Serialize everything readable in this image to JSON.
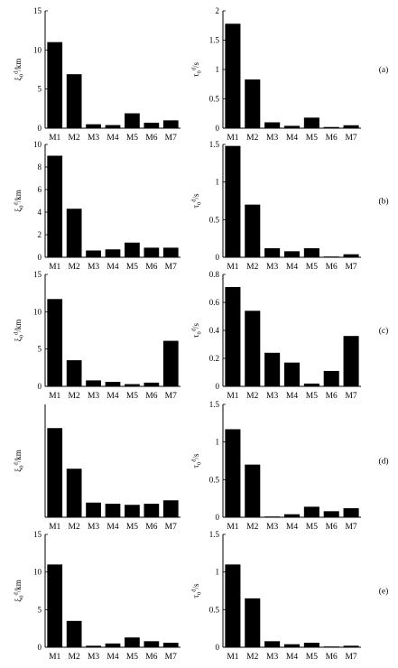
{
  "chart_data": [
    {
      "type": "bar",
      "panel": "",
      "categories": [
        "M1",
        "M2",
        "M3",
        "M4",
        "M5",
        "M6",
        "M7"
      ],
      "values": [
        11.0,
        6.9,
        0.5,
        0.4,
        1.9,
        0.7,
        1.0
      ],
      "ylim": [
        0,
        15
      ],
      "yticks": [
        "0",
        "5",
        "10",
        "15"
      ],
      "ylabel": "ξ0d/km",
      "xlabel": ""
    },
    {
      "type": "bar",
      "panel": "(a)",
      "categories": [
        "M1",
        "M2",
        "M3",
        "M4",
        "M5",
        "M6",
        "M7"
      ],
      "values": [
        1.78,
        0.83,
        0.1,
        0.04,
        0.18,
        0.02,
        0.05
      ],
      "ylim": [
        0,
        2
      ],
      "yticks": [
        "0",
        "0.5",
        "1",
        "1.5",
        "2"
      ],
      "ylabel": "τ0d/s",
      "xlabel": ""
    },
    {
      "type": "bar",
      "panel": "",
      "categories": [
        "M1",
        "M2",
        "M3",
        "M4",
        "M5",
        "M6",
        "M7"
      ],
      "values": [
        9.0,
        4.3,
        0.6,
        0.7,
        1.3,
        0.85,
        0.85
      ],
      "ylim": [
        0,
        10
      ],
      "yticks": [
        "0",
        "2",
        "4",
        "6",
        "8",
        "10"
      ],
      "ylabel": "ξ0d/km",
      "xlabel": ""
    },
    {
      "type": "bar",
      "panel": "(b)",
      "categories": [
        "M1",
        "M2",
        "M3",
        "M4",
        "M5",
        "M6",
        "M7"
      ],
      "values": [
        1.48,
        0.7,
        0.12,
        0.08,
        0.12,
        0.01,
        0.04
      ],
      "ylim": [
        0,
        1.5
      ],
      "yticks": [
        "0",
        "0.5",
        "1",
        "1.5"
      ],
      "ylabel": "τ0d/s",
      "xlabel": ""
    },
    {
      "type": "bar",
      "panel": "",
      "categories": [
        "M1",
        "M2",
        "M3",
        "M4",
        "M5",
        "M6",
        "M7"
      ],
      "values": [
        11.7,
        3.5,
        0.8,
        0.6,
        0.3,
        0.5,
        6.1
      ],
      "ylim": [
        0,
        15
      ],
      "yticks": [
        "0",
        "5",
        "10",
        "15"
      ],
      "ylabel": "ξ0d/km",
      "xlabel": ""
    },
    {
      "type": "bar",
      "panel": "(c)",
      "categories": [
        "M1",
        "M2",
        "M3",
        "M4",
        "M5",
        "M6",
        "M7"
      ],
      "values": [
        0.71,
        0.54,
        0.24,
        0.17,
        0.02,
        0.11,
        0.36
      ],
      "ylim": [
        0,
        0.8
      ],
      "yticks": [
        "0",
        "0.2",
        "0.4",
        "0.6",
        "0.8"
      ],
      "ylabel": "τ0d/s",
      "xlabel": ""
    },
    {
      "type": "bar",
      "panel": "",
      "categories": [
        "M1",
        "M2",
        "M3",
        "M4",
        "M5",
        "M6",
        "M7"
      ],
      "values": [
        0.79,
        0.43,
        0.13,
        0.12,
        0.11,
        0.12,
        0.15
      ],
      "ylim": [
        0,
        1
      ],
      "yticks": [],
      "ylabel": "ξ0d/km",
      "xlabel": ""
    },
    {
      "type": "bar",
      "panel": "(d)",
      "categories": [
        "M1",
        "M2",
        "M3",
        "M4",
        "M5",
        "M6",
        "M7"
      ],
      "values": [
        1.17,
        0.7,
        0.01,
        0.04,
        0.14,
        0.08,
        0.12
      ],
      "ylim": [
        0,
        1.5
      ],
      "yticks": [
        "0",
        "0.5",
        "1",
        "1.5"
      ],
      "ylabel": "τ0d/s",
      "xlabel": ""
    },
    {
      "type": "bar",
      "panel": "",
      "categories": [
        "M1",
        "M2",
        "M3",
        "M4",
        "M5",
        "M6",
        "M7"
      ],
      "values": [
        11.0,
        3.5,
        0.2,
        0.5,
        1.3,
        0.8,
        0.6
      ],
      "ylim": [
        0,
        15
      ],
      "yticks": [
        "0",
        "5",
        "10",
        "15"
      ],
      "ylabel": "ξ0d/km",
      "xlabel": ""
    },
    {
      "type": "bar",
      "panel": "(e)",
      "categories": [
        "M1",
        "M2",
        "M3",
        "M4",
        "M5",
        "M6",
        "M7"
      ],
      "values": [
        1.1,
        0.65,
        0.08,
        0.04,
        0.06,
        0.01,
        0.02
      ],
      "ylim": [
        0,
        1.5
      ],
      "yticks": [
        "0",
        "0.5",
        "1",
        "1.5"
      ],
      "ylabel": "τ0d/s",
      "xlabel": ""
    }
  ],
  "colors": {
    "bar": "#000000",
    "axis": "#000000",
    "background": "#ffffff"
  }
}
